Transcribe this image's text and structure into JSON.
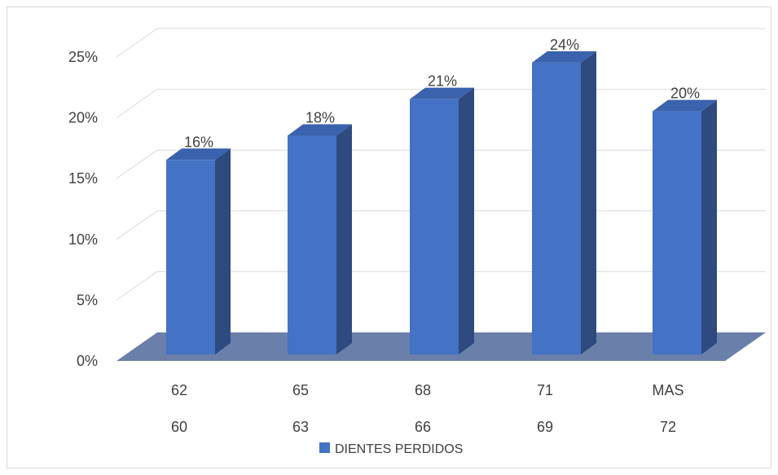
{
  "chart_data": {
    "type": "bar",
    "style": "3d-column",
    "categories_line1": [
      "62",
      "65",
      "68",
      "71",
      "MAS"
    ],
    "categories_line2": [
      "60",
      "63",
      "66",
      "69",
      "72"
    ],
    "series": [
      {
        "name": "DIENTES PERDIDOS",
        "values": [
          16,
          18,
          21,
          24,
          20
        ],
        "labels": [
          "16%",
          "18%",
          "21%",
          "24%",
          "20%"
        ]
      }
    ],
    "yticks": [
      "0%",
      "5%",
      "10%",
      "15%",
      "20%",
      "25%"
    ],
    "ylim": [
      0,
      25
    ],
    "grid": true,
    "legend_position": "bottom",
    "colors": {
      "bar_front": "#4472c4",
      "bar_side": "#2e4a7f",
      "bar_top": "#3a62ad",
      "floor": "#6b7fab",
      "grid": "#d9d9d9"
    }
  }
}
